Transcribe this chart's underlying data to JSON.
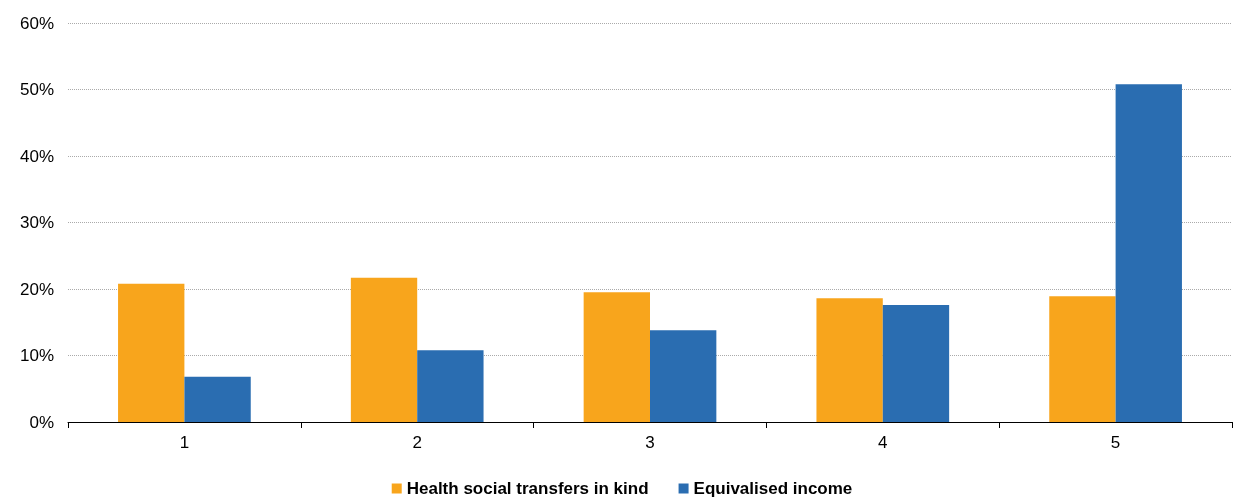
{
  "chart_data": {
    "type": "bar",
    "categories": [
      "1",
      "2",
      "3",
      "4",
      "5"
    ],
    "series": [
      {
        "name": "Health social transfers in kind",
        "color": "#f8a51c",
        "values": [
          20.8,
          21.7,
          19.5,
          18.6,
          18.9
        ]
      },
      {
        "name": "Equivalised income",
        "color": "#2a6db1",
        "values": [
          6.8,
          10.8,
          13.8,
          17.6,
          50.8
        ]
      }
    ],
    "ylim": [
      0,
      60
    ],
    "yticks": [
      {
        "value": 0,
        "label": "0%"
      },
      {
        "value": 10,
        "label": "10%"
      },
      {
        "value": 20,
        "label": "20%"
      },
      {
        "value": 30,
        "label": "30%"
      },
      {
        "value": 40,
        "label": "40%"
      },
      {
        "value": 50,
        "label": "50%"
      },
      {
        "value": 60,
        "label": "60%"
      }
    ],
    "grid": "y",
    "legend": "bottom"
  }
}
